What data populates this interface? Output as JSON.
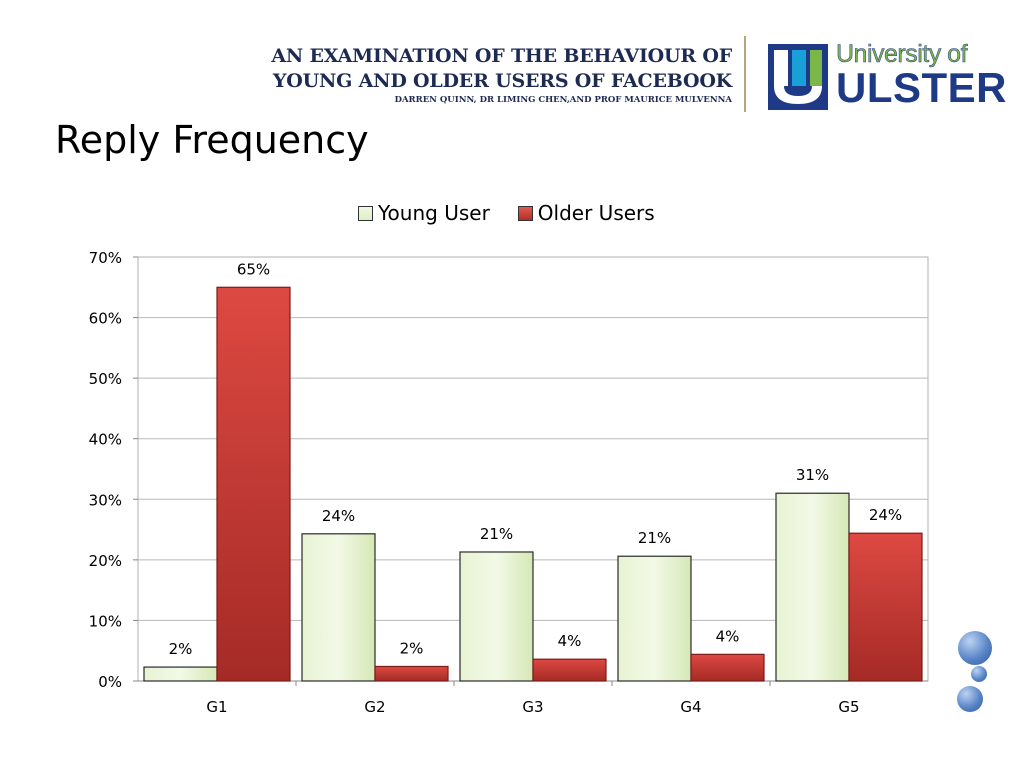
{
  "header": {
    "line1": "AN EXAMINATION OF THE BEHAVIOUR OF",
    "line2": "YOUNG AND OLDER USERS OF FACEBOOK",
    "authors": "DARREN QUINN, DR LIMING CHEN,AND PROF MAURICE MULVENNA",
    "logo_line1": "University of",
    "logo_line2": "ULSTER"
  },
  "slide": {
    "title": "Reply Frequency"
  },
  "colors": {
    "young": "#dfeec6",
    "older": "#c93b36",
    "brand": "#1e3a87"
  },
  "chart_data": {
    "type": "bar",
    "title": "",
    "xlabel": "",
    "ylabel": "",
    "categories": [
      "G1",
      "G2",
      "G3",
      "G4",
      "G5"
    ],
    "series": [
      {
        "name": "Young User",
        "values": [
          2.3,
          24.3,
          21.3,
          20.6,
          31.0
        ],
        "labels": [
          "2%",
          "24%",
          "21%",
          "21%",
          "31%"
        ]
      },
      {
        "name": "Older Users",
        "values": [
          65.0,
          2.4,
          3.6,
          4.4,
          24.4
        ],
        "labels": [
          "65%",
          "2%",
          "4%",
          "4%",
          "24%"
        ]
      }
    ],
    "ylim": [
      0,
      70
    ],
    "yticks": [
      "0%",
      "10%",
      "20%",
      "30%",
      "40%",
      "50%",
      "60%",
      "70%"
    ],
    "grid": true,
    "legend": "top-center"
  }
}
